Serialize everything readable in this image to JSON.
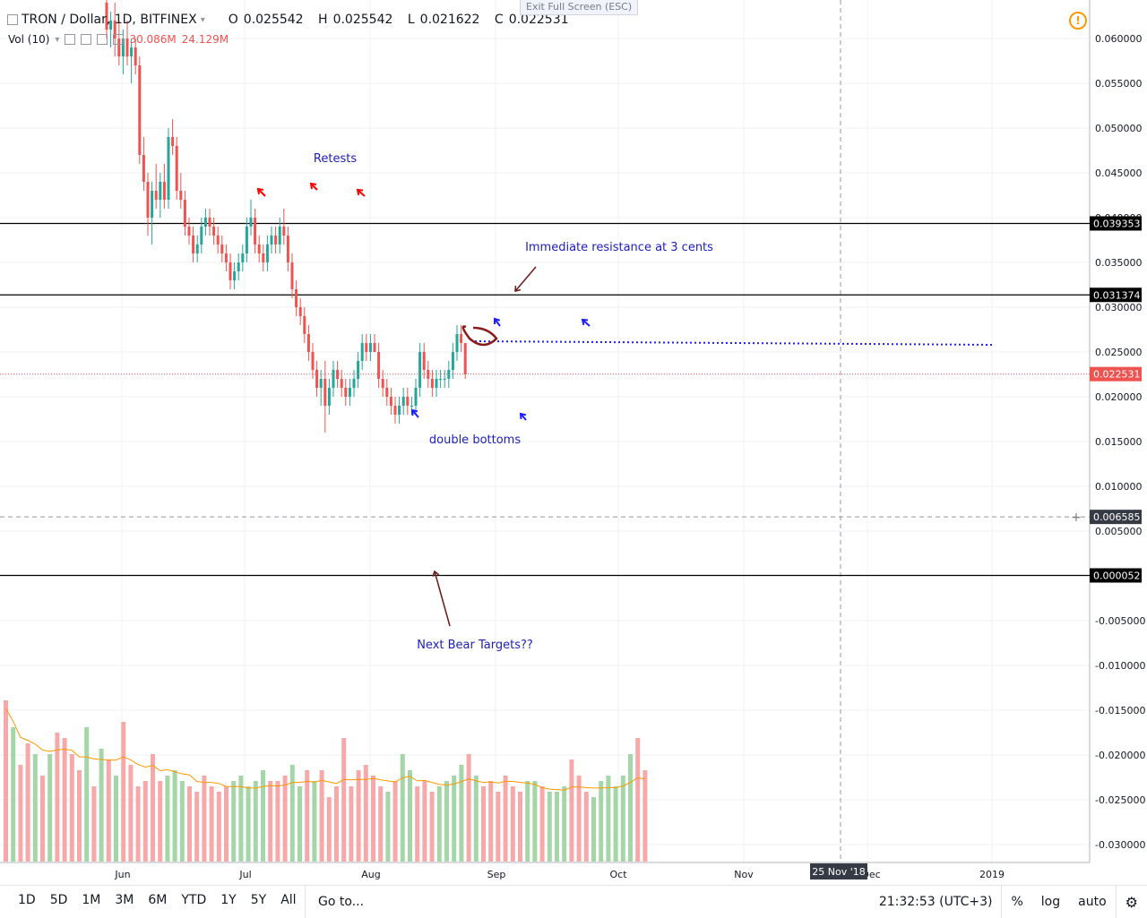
{
  "header": {
    "symbol": "TRON / Dollar, 1D, BITFINEX",
    "o_label": "O",
    "o_value": "0.025542",
    "h_label": "H",
    "h_value": "0.025542",
    "l_label": "L",
    "l_value": "0.021622",
    "c_label": "C",
    "c_value": "0.022531"
  },
  "volume_legend": {
    "label": "Vol (10)",
    "value1": "30.086M",
    "value2": "24.129M"
  },
  "exit_fullscreen": "Exit Full Screen (ESC)",
  "bottom_bar": {
    "ranges": [
      "1D",
      "5D",
      "1M",
      "3M",
      "6M",
      "YTD",
      "1Y",
      "5Y",
      "All"
    ],
    "goto": "Go to...",
    "clock": "21:32:53 (UTC+3)",
    "percent": "%",
    "log": "log",
    "auto": "auto"
  },
  "chart_data": {
    "type": "candlestick",
    "title": "TRON / Dollar, 1D, BITFINEX",
    "price_axis": {
      "ylim": [
        -0.0325,
        0.0645
      ],
      "ticks": [
        0.06,
        0.055,
        0.05,
        0.045,
        0.04,
        0.035,
        0.03,
        0.025,
        0.02,
        0.015,
        0.01,
        0.005,
        0.0,
        -0.005,
        -0.01,
        -0.015,
        -0.02,
        -0.025,
        -0.03
      ],
      "tick_labels": [
        "0.060000",
        "0.055000",
        "0.050000",
        "0.045000",
        "0.040000",
        "0.035000",
        "0.030000",
        "0.025000",
        "0.020000",
        "0.015000",
        "0.010000",
        "0.005000",
        "0.000000",
        "-0.005000",
        "-0.010000",
        "-0.015000",
        "-0.020000",
        "-0.025000",
        "-0.030000"
      ]
    },
    "time_axis": {
      "labels": [
        "Jun",
        "Jul",
        "Aug",
        "Sep",
        "Oct",
        "Nov",
        "Dec",
        "2019"
      ],
      "cursor_label": "25 Nov '18"
    },
    "levels": [
      {
        "price": 0.039353,
        "label": "0.039353",
        "style": "solid"
      },
      {
        "price": 0.031374,
        "label": "0.031374",
        "style": "solid"
      },
      {
        "price": 5.2e-05,
        "label": "0.000052",
        "style": "solid"
      },
      {
        "price": 0.022531,
        "label": "0.022531",
        "style": "last-price"
      },
      {
        "price": 0.006585,
        "label": "0.006585",
        "style": "crosshair"
      }
    ],
    "resistance_dotted": {
      "price": 0.0262
    },
    "annotations": [
      {
        "text": "Retests"
      },
      {
        "text": "Immediate resistance at 3 cents"
      },
      {
        "text": "double bottoms"
      },
      {
        "text": "Next Bear Targets??"
      }
    ],
    "candles": [
      [
        0.064,
        0.065,
        0.06,
        0.061
      ],
      [
        0.061,
        0.063,
        0.059,
        0.062
      ],
      [
        0.062,
        0.064,
        0.058,
        0.06
      ],
      [
        0.06,
        0.062,
        0.057,
        0.058
      ],
      [
        0.058,
        0.061,
        0.056,
        0.06
      ],
      [
        0.06,
        0.062,
        0.057,
        0.058
      ],
      [
        0.058,
        0.06,
        0.055,
        0.059
      ],
      [
        0.059,
        0.06,
        0.056,
        0.057
      ],
      [
        0.057,
        0.058,
        0.046,
        0.047
      ],
      [
        0.047,
        0.049,
        0.043,
        0.044
      ],
      [
        0.044,
        0.045,
        0.038,
        0.04
      ],
      [
        0.04,
        0.044,
        0.037,
        0.043
      ],
      [
        0.043,
        0.046,
        0.041,
        0.042
      ],
      [
        0.042,
        0.045,
        0.04,
        0.044
      ],
      [
        0.044,
        0.046,
        0.041,
        0.042
      ],
      [
        0.042,
        0.05,
        0.041,
        0.049
      ],
      [
        0.049,
        0.051,
        0.047,
        0.048
      ],
      [
        0.048,
        0.049,
        0.042,
        0.043
      ],
      [
        0.043,
        0.045,
        0.041,
        0.042
      ],
      [
        0.042,
        0.043,
        0.038,
        0.039
      ],
      [
        0.039,
        0.04,
        0.037,
        0.038
      ],
      [
        0.038,
        0.039,
        0.035,
        0.036
      ],
      [
        0.036,
        0.038,
        0.035,
        0.037
      ],
      [
        0.037,
        0.04,
        0.036,
        0.039
      ],
      [
        0.039,
        0.041,
        0.038,
        0.04
      ],
      [
        0.04,
        0.041,
        0.038,
        0.039
      ],
      [
        0.039,
        0.04,
        0.037,
        0.038
      ],
      [
        0.038,
        0.039,
        0.036,
        0.037
      ],
      [
        0.037,
        0.038,
        0.035,
        0.036
      ],
      [
        0.036,
        0.037,
        0.034,
        0.035
      ],
      [
        0.035,
        0.036,
        0.032,
        0.033
      ],
      [
        0.033,
        0.035,
        0.032,
        0.034
      ],
      [
        0.034,
        0.036,
        0.033,
        0.035
      ],
      [
        0.035,
        0.037,
        0.034,
        0.036
      ],
      [
        0.036,
        0.04,
        0.035,
        0.039
      ],
      [
        0.039,
        0.042,
        0.038,
        0.04
      ],
      [
        0.04,
        0.041,
        0.036,
        0.037
      ],
      [
        0.037,
        0.038,
        0.035,
        0.036
      ],
      [
        0.036,
        0.037,
        0.034,
        0.035
      ],
      [
        0.035,
        0.038,
        0.034,
        0.037
      ],
      [
        0.037,
        0.039,
        0.036,
        0.038
      ],
      [
        0.038,
        0.039,
        0.036,
        0.037
      ],
      [
        0.037,
        0.04,
        0.036,
        0.039
      ],
      [
        0.039,
        0.041,
        0.037,
        0.038
      ],
      [
        0.038,
        0.039,
        0.034,
        0.035
      ],
      [
        0.035,
        0.036,
        0.031,
        0.032
      ],
      [
        0.032,
        0.033,
        0.029,
        0.03
      ],
      [
        0.03,
        0.031,
        0.028,
        0.029
      ],
      [
        0.029,
        0.03,
        0.026,
        0.027
      ],
      [
        0.027,
        0.028,
        0.024,
        0.025
      ],
      [
        0.025,
        0.026,
        0.022,
        0.023
      ],
      [
        0.023,
        0.024,
        0.02,
        0.021
      ],
      [
        0.021,
        0.023,
        0.019,
        0.022
      ],
      [
        0.022,
        0.024,
        0.016,
        0.019
      ],
      [
        0.019,
        0.022,
        0.018,
        0.021
      ],
      [
        0.021,
        0.024,
        0.02,
        0.023
      ],
      [
        0.023,
        0.024,
        0.021,
        0.022
      ],
      [
        0.022,
        0.023,
        0.02,
        0.021
      ],
      [
        0.021,
        0.022,
        0.019,
        0.02
      ],
      [
        0.02,
        0.022,
        0.019,
        0.021
      ],
      [
        0.021,
        0.023,
        0.02,
        0.022
      ],
      [
        0.022,
        0.025,
        0.021,
        0.024
      ],
      [
        0.024,
        0.027,
        0.023,
        0.026
      ],
      [
        0.026,
        0.027,
        0.024,
        0.025
      ],
      [
        0.025,
        0.027,
        0.024,
        0.026
      ],
      [
        0.026,
        0.027,
        0.025,
        0.025
      ],
      [
        0.025,
        0.026,
        0.021,
        0.022
      ],
      [
        0.022,
        0.023,
        0.02,
        0.021
      ],
      [
        0.021,
        0.022,
        0.019,
        0.02
      ],
      [
        0.02,
        0.021,
        0.018,
        0.019
      ],
      [
        0.019,
        0.02,
        0.017,
        0.018
      ],
      [
        0.018,
        0.02,
        0.017,
        0.019
      ],
      [
        0.019,
        0.021,
        0.018,
        0.02
      ],
      [
        0.02,
        0.021,
        0.018,
        0.019
      ],
      [
        0.019,
        0.02,
        0.018,
        0.019
      ],
      [
        0.019,
        0.022,
        0.018,
        0.021
      ],
      [
        0.021,
        0.026,
        0.02,
        0.025
      ],
      [
        0.025,
        0.026,
        0.022,
        0.023
      ],
      [
        0.023,
        0.024,
        0.021,
        0.022
      ],
      [
        0.022,
        0.023,
        0.02,
        0.021
      ],
      [
        0.021,
        0.023,
        0.02,
        0.022
      ],
      [
        0.022,
        0.023,
        0.021,
        0.022
      ],
      [
        0.022,
        0.023,
        0.021,
        0.022
      ],
      [
        0.022,
        0.024,
        0.021,
        0.023
      ],
      [
        0.023,
        0.026,
        0.022,
        0.025
      ],
      [
        0.025,
        0.028,
        0.024,
        0.027
      ],
      [
        0.027,
        0.028,
        0.025,
        0.026
      ],
      [
        0.026,
        0.026,
        0.022,
        0.0225
      ]
    ],
    "volume": {
      "label": "Vol (10)",
      "values": [
        30,
        25,
        18,
        22,
        20,
        16,
        20,
        24,
        23,
        20,
        17,
        25,
        14,
        21,
        19,
        16,
        26,
        18,
        14,
        15,
        20,
        15,
        16,
        17,
        15,
        14,
        13,
        16,
        14,
        13,
        14,
        15,
        16,
        14,
        15,
        17,
        15,
        15,
        16,
        18,
        14,
        17,
        15,
        17,
        12,
        14,
        23,
        14,
        17,
        18,
        16,
        14,
        13,
        15,
        20,
        17,
        14,
        15,
        13,
        14,
        15,
        16,
        18,
        20,
        16,
        14,
        15,
        13,
        16,
        14,
        13,
        15,
        15,
        14,
        13,
        13,
        14,
        19,
        16,
        13,
        12,
        15,
        16,
        14,
        16,
        20,
        23,
        17
      ],
      "up_color": "#a5d6a7",
      "down_color": "#f7a9a9",
      "ma_color": "#ff9800"
    }
  },
  "colors": {
    "up": "#26a69a",
    "down": "#ef5350",
    "level": "#000000",
    "annotation": "#1d1dbb",
    "arrow_red": "#ff0000",
    "arrow_blue": "#1d1dff",
    "arrow_brown": "#6b1a1a"
  }
}
